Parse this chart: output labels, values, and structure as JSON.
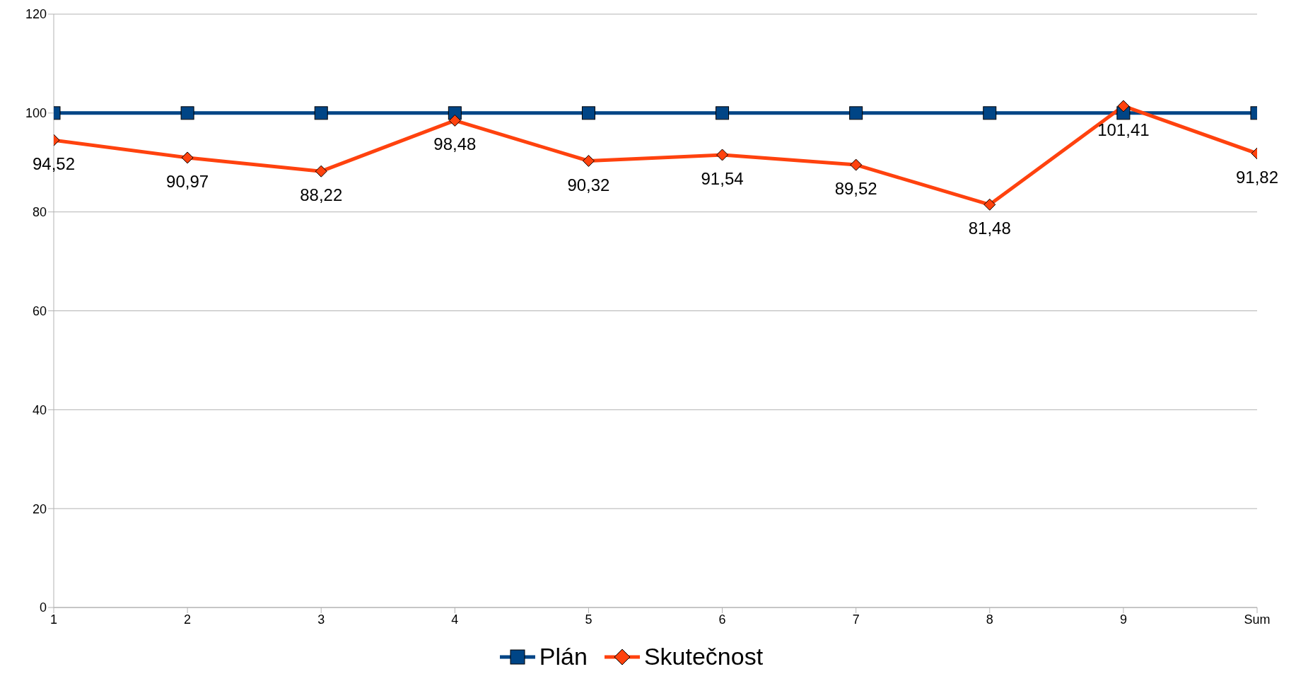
{
  "chart_data": {
    "type": "line",
    "categories": [
      "1",
      "2",
      "3",
      "4",
      "5",
      "6",
      "7",
      "8",
      "9",
      "Sum"
    ],
    "series": [
      {
        "name": "Plán",
        "color": "#004586",
        "marker": "square",
        "values": [
          100,
          100,
          100,
          100,
          100,
          100,
          100,
          100,
          100,
          100
        ]
      },
      {
        "name": "Skutečnost",
        "color": "#ff420e",
        "marker": "diamond",
        "values": [
          94.52,
          90.97,
          88.22,
          98.48,
          90.32,
          91.54,
          89.52,
          81.48,
          101.41,
          91.82
        ],
        "value_labels": [
          "94,52",
          "90,97",
          "88,22",
          "98,48",
          "90,32",
          "91,54",
          "89,52",
          "81,48",
          "101,41",
          "91,82"
        ]
      }
    ],
    "ylim": [
      0,
      120
    ],
    "yticks": [
      0,
      20,
      40,
      60,
      80,
      100,
      120
    ],
    "grid": "y",
    "legend": "bottom"
  }
}
